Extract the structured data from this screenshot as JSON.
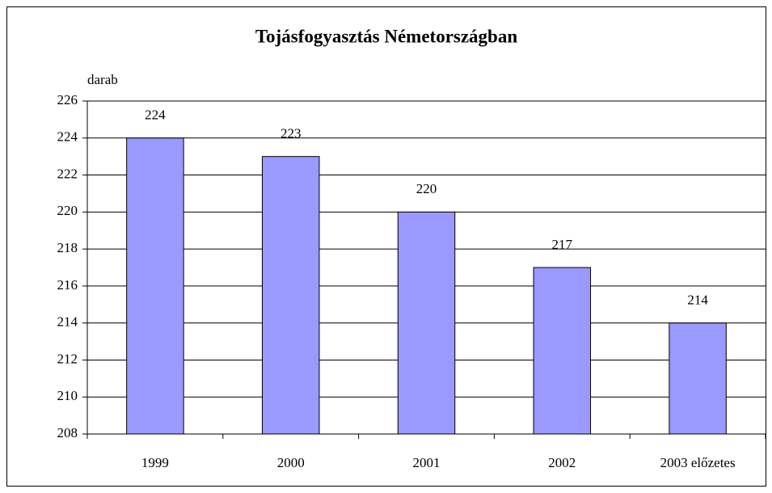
{
  "chart_data": {
    "type": "bar",
    "title": "Tojásfogyasztás Németországban",
    "y_label": "darab",
    "categories": [
      "1999",
      "2000",
      "2001",
      "2002",
      "2003 előzetes"
    ],
    "values": [
      224,
      223,
      220,
      217,
      214
    ],
    "color": "#9999ff",
    "ylim": [
      208,
      226
    ],
    "yticks": [
      208,
      210,
      212,
      214,
      216,
      218,
      220,
      222,
      224,
      226
    ],
    "grid": true
  }
}
